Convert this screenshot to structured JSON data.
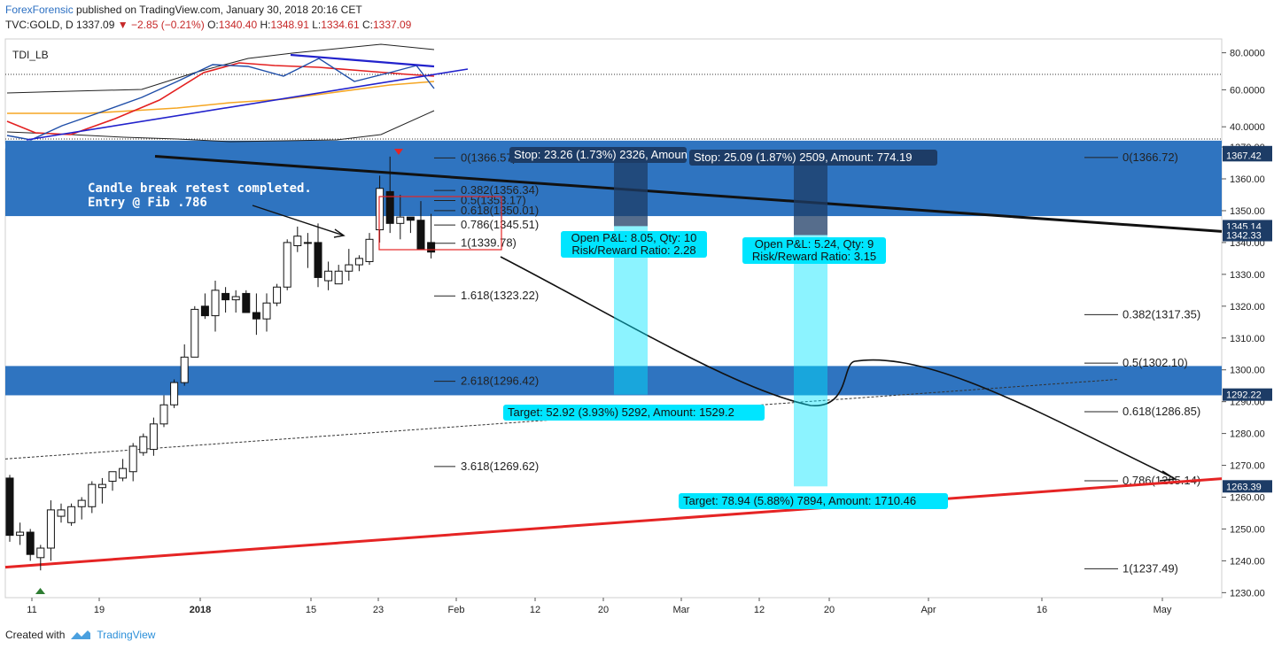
{
  "header": {
    "publisher": "ForexForensic",
    "published_text": "published on TradingView.com, January 30, 2018 20:16 CET",
    "symbol_line": "TVC:GOLD, D",
    "last": "1337.09",
    "change": "−2.85 (−0.21%)",
    "o_label": "O:",
    "o": "1340.40",
    "h_label": "H:",
    "h": "1348.91",
    "l_label": "L:",
    "l": "1334.61",
    "c_label": "C:",
    "c": "1337.09"
  },
  "footer": {
    "created_with": "Created with",
    "brand": "TradingView"
  },
  "colors": {
    "zone_blue": "#2f74c0",
    "target_cyan": "#00e5ff",
    "trend_red": "#e52424",
    "trend_black": "#111111",
    "indicator_blue": "#2222cc",
    "indicator_red": "#e32020",
    "indicator_orange": "#f5a623"
  },
  "chart_data": {
    "type": "candlestick",
    "title": "TVC:GOLD, D",
    "indicator": {
      "name": "TDI_LB",
      "y_ticks": [
        "80.0000",
        "60.0000",
        "40.0000"
      ],
      "ylim": [
        30,
        85
      ]
    },
    "ylim": [
      1230,
      1372
    ],
    "y_ticks": [
      "1370.00",
      "1360.00",
      "1350.00",
      "1340.00",
      "1330.00",
      "1320.00",
      "1310.00",
      "1300.00",
      "1290.00",
      "1280.00",
      "1270.00",
      "1260.00",
      "1250.00",
      "1240.00",
      "1230.00"
    ],
    "price_labels": [
      {
        "value": 1368.4,
        "text": "1368.40"
      },
      {
        "value": 1367.42,
        "text": "1367.42"
      },
      {
        "value": 1345.14,
        "text": "1345.14"
      },
      {
        "value": 1342.33,
        "text": "1342.33"
      },
      {
        "value": 1292.22,
        "text": "1292.22"
      },
      {
        "value": 1263.39,
        "text": "1263.39"
      }
    ],
    "x_ticks": [
      "11",
      "19",
      "2018",
      "15",
      "23",
      "Feb",
      "12",
      "20",
      "Mar",
      "12",
      "20",
      "Apr",
      "16",
      "May"
    ],
    "candles": [
      {
        "o": 1266,
        "h": 1267,
        "l": 1246,
        "c": 1248
      },
      {
        "o": 1248,
        "h": 1252,
        "l": 1245,
        "c": 1249
      },
      {
        "o": 1249,
        "h": 1250,
        "l": 1240,
        "c": 1242
      },
      {
        "o": 1241,
        "h": 1245,
        "l": 1237,
        "c": 1244
      },
      {
        "o": 1244,
        "h": 1259,
        "l": 1240,
        "c": 1256
      },
      {
        "o": 1254,
        "h": 1258,
        "l": 1252,
        "c": 1256
      },
      {
        "o": 1252,
        "h": 1258,
        "l": 1251,
        "c": 1257
      },
      {
        "o": 1257,
        "h": 1260,
        "l": 1253,
        "c": 1259
      },
      {
        "o": 1257,
        "h": 1265,
        "l": 1255,
        "c": 1264
      },
      {
        "o": 1263,
        "h": 1266,
        "l": 1258,
        "c": 1264
      },
      {
        "o": 1265,
        "h": 1268,
        "l": 1262,
        "c": 1268
      },
      {
        "o": 1266,
        "h": 1272,
        "l": 1265,
        "c": 1269
      },
      {
        "o": 1268,
        "h": 1277,
        "l": 1265,
        "c": 1276
      },
      {
        "o": 1274,
        "h": 1280,
        "l": 1273,
        "c": 1279
      },
      {
        "o": 1275,
        "h": 1285,
        "l": 1273,
        "c": 1283
      },
      {
        "o": 1283,
        "h": 1292,
        "l": 1282,
        "c": 1289
      },
      {
        "o": 1289,
        "h": 1297,
        "l": 1288,
        "c": 1296
      },
      {
        "o": 1296,
        "h": 1308,
        "l": 1295,
        "c": 1304
      },
      {
        "o": 1304,
        "h": 1320,
        "l": 1304,
        "c": 1319
      },
      {
        "o": 1320,
        "h": 1324,
        "l": 1316,
        "c": 1317
      },
      {
        "o": 1317,
        "h": 1328,
        "l": 1312,
        "c": 1325
      },
      {
        "o": 1324,
        "h": 1326,
        "l": 1318,
        "c": 1322
      },
      {
        "o": 1322,
        "h": 1325,
        "l": 1318,
        "c": 1323
      },
      {
        "o": 1324,
        "h": 1325,
        "l": 1318,
        "c": 1318
      },
      {
        "o": 1318,
        "h": 1324,
        "l": 1311,
        "c": 1316
      },
      {
        "o": 1316,
        "h": 1324,
        "l": 1312,
        "c": 1321
      },
      {
        "o": 1321,
        "h": 1327,
        "l": 1320,
        "c": 1326
      },
      {
        "o": 1326,
        "h": 1341,
        "l": 1325,
        "c": 1340
      },
      {
        "o": 1339,
        "h": 1345,
        "l": 1337,
        "c": 1342
      },
      {
        "o": 1340,
        "h": 1343,
        "l": 1332,
        "c": 1340
      },
      {
        "o": 1340,
        "h": 1346,
        "l": 1326,
        "c": 1329
      },
      {
        "o": 1328,
        "h": 1334,
        "l": 1325,
        "c": 1331
      },
      {
        "o": 1327,
        "h": 1333,
        "l": 1327,
        "c": 1331
      },
      {
        "o": 1331,
        "h": 1338,
        "l": 1328,
        "c": 1333
      },
      {
        "o": 1333,
        "h": 1336,
        "l": 1331,
        "c": 1335
      },
      {
        "o": 1334,
        "h": 1343,
        "l": 1333,
        "c": 1341
      },
      {
        "o": 1344,
        "h": 1361,
        "l": 1340,
        "c": 1357
      },
      {
        "o": 1356,
        "h": 1367,
        "l": 1343,
        "c": 1346
      },
      {
        "o": 1346,
        "h": 1355,
        "l": 1341,
        "c": 1348
      },
      {
        "o": 1348,
        "h": 1348,
        "l": 1343,
        "c": 1347
      },
      {
        "o": 1347,
        "h": 1353,
        "l": 1338,
        "c": 1338
      },
      {
        "o": 1340,
        "h": 1349,
        "l": 1335,
        "c": 1337
      }
    ],
    "annotation": "Candle break retest completed.\nEntry @ Fib .786",
    "fib_left": [
      {
        "value": 1366.57,
        "text": "0(1366.57)"
      },
      {
        "value": 1356.34,
        "text": "0.382(1356.34)"
      },
      {
        "value": 1353.17,
        "text": "0.5(1353.17)"
      },
      {
        "value": 1350.01,
        "text": "0.618(1350.01)"
      },
      {
        "value": 1345.51,
        "text": "0.786(1345.51)"
      },
      {
        "value": 1339.78,
        "text": "1(1339.78)"
      },
      {
        "value": 1323.22,
        "text": "1.618(1323.22)"
      },
      {
        "value": 1296.42,
        "text": "2.618(1296.42)"
      },
      {
        "value": 1269.62,
        "text": "3.618(1269.62)"
      }
    ],
    "fib_right": [
      {
        "value": 1366.72,
        "text": "0(1366.72)"
      },
      {
        "value": 1317.35,
        "text": "0.382(1317.35)"
      },
      {
        "value": 1302.1,
        "text": "0.5(1302.10)"
      },
      {
        "value": 1286.85,
        "text": "0.618(1286.85)"
      },
      {
        "value": 1265.14,
        "text": "0.786(1265.14)"
      },
      {
        "value": 1237.49,
        "text": "1(1237.49)"
      }
    ],
    "positions": [
      {
        "stop": "Stop: 23.26 (1.73%) 2326, Amoun",
        "pl": "Open P&L: 8.05, Qty: 10",
        "rr": "Risk/Reward Ratio: 2.28",
        "target": "Target: 52.92 (3.93%) 5292, Amount: 1529.2",
        "entry": 1345.14,
        "stop_price": 1368.4,
        "target_price": 1292.22
      },
      {
        "stop": "Stop: 25.09 (1.87%) 2509, Amount: 774.19",
        "pl": "Open P&L: 5.24, Qty: 9",
        "rr": "Risk/Reward Ratio: 3.15",
        "target": "Target: 78.94 (5.88%) 7894, Amount: 1710.46",
        "entry": 1342.33,
        "stop_price": 1367.42,
        "target_price": 1263.39
      }
    ]
  }
}
